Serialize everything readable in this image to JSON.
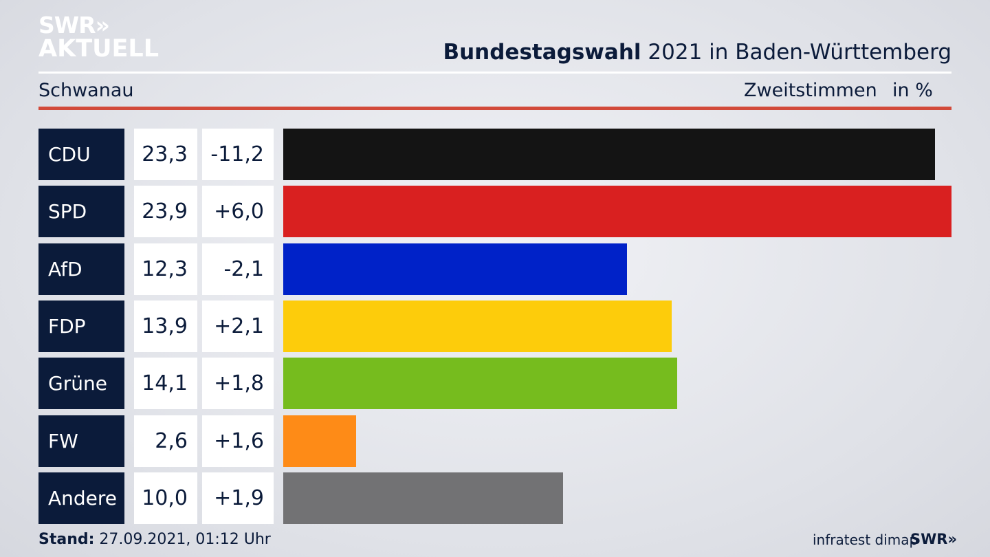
{
  "logo": {
    "line1": "SWR»",
    "line2": "AKTUELL"
  },
  "header": {
    "title_bold": "Bundestagswahl",
    "title_rest": " 2021 in Baden-Württemberg",
    "place": "Schwanau",
    "metric": "Zweitstimmen",
    "unit": "in %"
  },
  "chart_data": {
    "type": "bar",
    "categories": [
      "CDU",
      "SPD",
      "AfD",
      "FDP",
      "Grüne",
      "FW",
      "Andere"
    ],
    "values": [
      23.3,
      23.9,
      12.3,
      13.9,
      14.1,
      2.6,
      10.0
    ],
    "value_labels": [
      "23,3",
      "23,9",
      "12,3",
      "13,9",
      "14,1",
      "2,6",
      "10,0"
    ],
    "change_labels": [
      "-11,2",
      "+6,0",
      "-2,1",
      "+2,1",
      "+1,8",
      "+1,6",
      "+1,9"
    ],
    "colors": [
      "#141414",
      "#d92020",
      "#0022c8",
      "#fdcc0b",
      "#76bc1e",
      "#fe8b17",
      "#727274"
    ],
    "orientation": "horizontal",
    "xlim": [
      0,
      23.9
    ],
    "grid": false
  },
  "footer": {
    "stand_label": "Stand:",
    "stand_value": " 27.09.2021, 01:12 Uhr",
    "source": "infratest dimap",
    "brand": "SWR»"
  }
}
